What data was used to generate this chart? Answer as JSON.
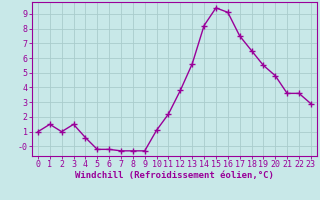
{
  "x": [
    0,
    1,
    2,
    3,
    4,
    5,
    6,
    7,
    8,
    9,
    10,
    11,
    12,
    13,
    14,
    15,
    16,
    17,
    18,
    19,
    20,
    21,
    22,
    23
  ],
  "y": [
    1.0,
    1.5,
    1.0,
    1.5,
    0.6,
    -0.2,
    -0.2,
    -0.3,
    -0.3,
    -0.3,
    1.1,
    2.2,
    3.8,
    5.6,
    8.2,
    9.4,
    9.1,
    7.5,
    6.5,
    5.5,
    4.8,
    3.6,
    3.6,
    2.9
  ],
  "line_color": "#990099",
  "marker": "+",
  "marker_size": 4,
  "marker_linewidth": 1.0,
  "line_width": 1.0,
  "background_color": "#c8e8e8",
  "grid_color": "#aacccc",
  "xlabel": "Windchill (Refroidissement éolien,°C)",
  "xlabel_fontsize": 6.5,
  "tick_fontsize": 6.0,
  "xlim": [
    -0.5,
    23.5
  ],
  "ylim": [
    -0.65,
    9.8
  ],
  "yticks": [
    0,
    1,
    2,
    3,
    4,
    5,
    6,
    7,
    8,
    9
  ],
  "ytick_labels": [
    "-0",
    "1",
    "2",
    "3",
    "4",
    "5",
    "6",
    "7",
    "8",
    "9"
  ],
  "xticks": [
    0,
    1,
    2,
    3,
    4,
    5,
    6,
    7,
    8,
    9,
    10,
    11,
    12,
    13,
    14,
    15,
    16,
    17,
    18,
    19,
    20,
    21,
    22,
    23
  ]
}
